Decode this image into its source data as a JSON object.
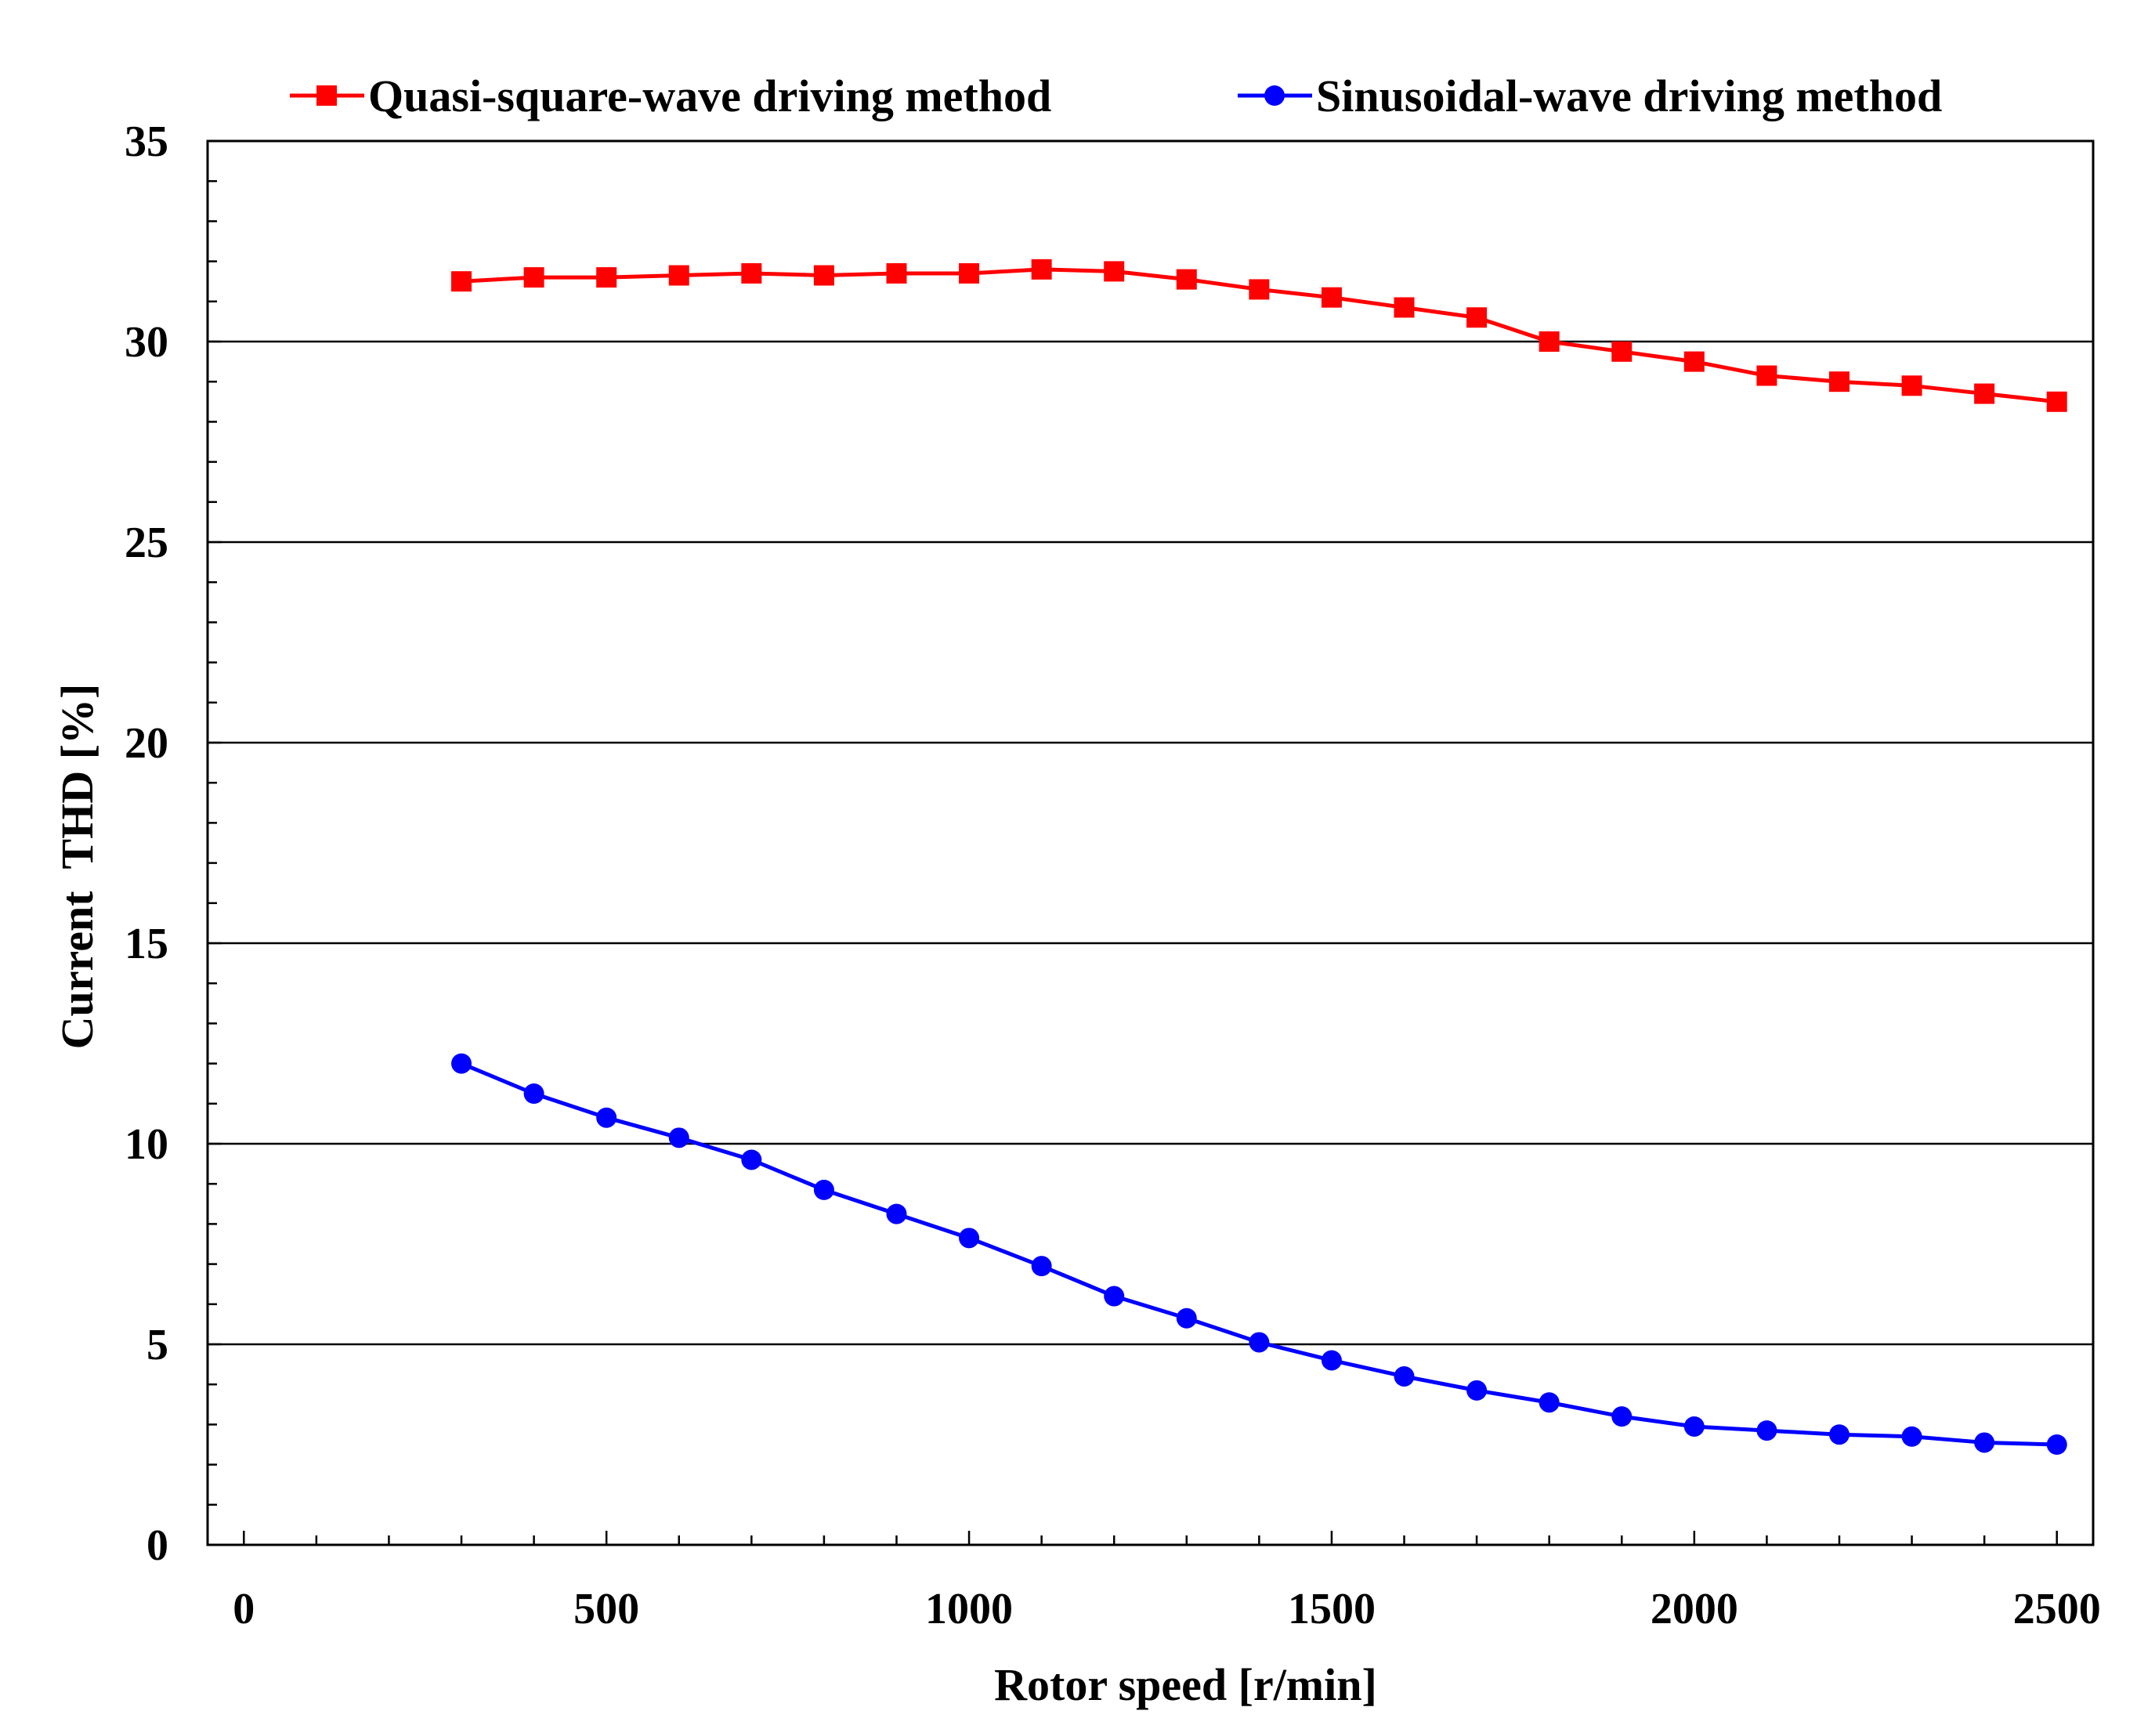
{
  "chart_data": {
    "type": "line",
    "title": "",
    "xlabel": "Rotor speed [r/min]",
    "ylabel": "Current  THD [%]",
    "xlim": [
      -50,
      2550
    ],
    "ylim": [
      0,
      35
    ],
    "xticks": [
      0,
      500,
      1000,
      1500,
      2000,
      2500
    ],
    "xtick_labels": [
      "0",
      "500",
      "1000",
      "1500",
      "2000",
      "2500"
    ],
    "yticks": [
      0,
      5,
      10,
      15,
      20,
      25,
      30,
      35
    ],
    "ytick_labels": [
      "0",
      "5",
      "10",
      "15",
      "20",
      "25",
      "30",
      "35"
    ],
    "grid": "horizontal",
    "legend": "top",
    "x": [
      300,
      400,
      500,
      600,
      700,
      800,
      900,
      1000,
      1100,
      1200,
      1300,
      1400,
      1500,
      1600,
      1700,
      1800,
      1900,
      2000,
      2100,
      2200,
      2300,
      2400,
      2500
    ],
    "series": [
      {
        "name": "Quasi-square-wave driving method",
        "color": "#ff0000",
        "marker": "square",
        "values": [
          31.5,
          31.6,
          31.6,
          31.65,
          31.7,
          31.65,
          31.7,
          31.7,
          31.8,
          31.75,
          31.55,
          31.3,
          31.1,
          30.85,
          30.6,
          30.0,
          29.75,
          29.5,
          29.15,
          29.0,
          28.9,
          28.7,
          28.5
        ]
      },
      {
        "name": "Sinusoidal-wave driving method",
        "color": "#0000ff",
        "marker": "circle",
        "values": [
          12.0,
          11.25,
          10.65,
          10.15,
          9.6,
          8.85,
          8.25,
          7.65,
          6.95,
          6.2,
          5.65,
          5.05,
          4.6,
          4.2,
          3.85,
          3.55,
          3.2,
          2.95,
          2.85,
          2.75,
          2.7,
          2.55,
          2.5
        ]
      }
    ]
  }
}
